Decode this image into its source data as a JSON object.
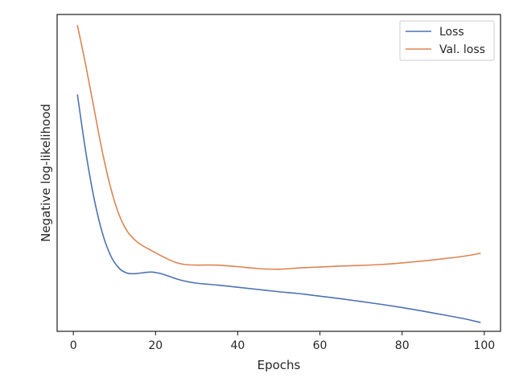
{
  "chart_data": {
    "type": "line",
    "title": "",
    "xlabel": "Epochs",
    "ylabel": "Negative log-likelihood",
    "xlim": [
      -3.95,
      103.95
    ],
    "ylim": [
      0,
      100
    ],
    "xticks": [
      0,
      20,
      40,
      60,
      80,
      100
    ],
    "yticks": [],
    "grid": false,
    "legend": "top-right",
    "series": [
      {
        "name": "Loss",
        "color": "#4c72b0",
        "x": [
          1,
          3,
          5,
          7,
          9,
          11,
          13,
          15,
          17,
          19,
          21,
          23,
          25,
          27,
          30,
          35,
          40,
          45,
          50,
          55,
          60,
          65,
          70,
          75,
          80,
          85,
          90,
          95,
          99
        ],
        "y": [
          74.6,
          56.8,
          42.2,
          31.3,
          24.1,
          20.1,
          18.4,
          18.2,
          18.5,
          18.7,
          18.3,
          17.5,
          16.6,
          15.9,
          15.2,
          14.6,
          13.9,
          13.2,
          12.5,
          11.9,
          11.1,
          10.3,
          9.4,
          8.5,
          7.5,
          6.4,
          5.2,
          4.0,
          2.8
        ]
      },
      {
        "name": "Val. loss",
        "color": "#dd8452",
        "x": [
          1,
          3,
          5,
          7,
          9,
          11,
          13,
          15,
          17,
          19,
          21,
          23,
          25,
          27,
          30,
          35,
          40,
          45,
          50,
          55,
          60,
          65,
          70,
          75,
          80,
          85,
          90,
          95,
          99
        ],
        "y": [
          96.5,
          84.1,
          70.5,
          57.0,
          45.7,
          37.2,
          31.8,
          28.8,
          26.9,
          25.5,
          24.1,
          22.8,
          21.7,
          21.1,
          20.9,
          20.9,
          20.4,
          19.8,
          19.6,
          20.0,
          20.3,
          20.6,
          20.8,
          21.1,
          21.6,
          22.2,
          22.9,
          23.7,
          24.6
        ]
      }
    ]
  }
}
